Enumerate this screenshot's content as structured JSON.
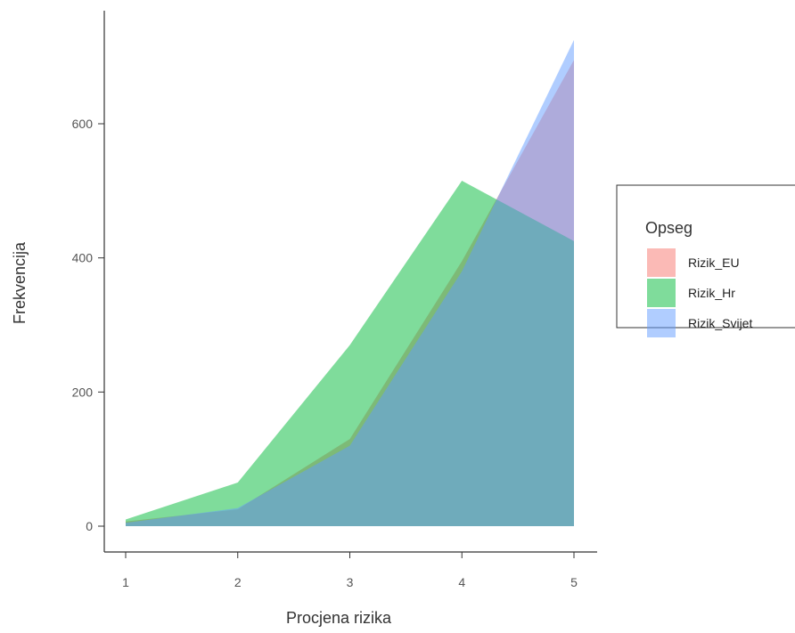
{
  "chart_data": {
    "type": "area",
    "xlabel": "Procjena rizika",
    "ylabel": "Frekvencija",
    "x": [
      1,
      2,
      3,
      4,
      5
    ],
    "xlim": [
      1,
      5
    ],
    "ylim": [
      0,
      720
    ],
    "x_ticks": [
      "1",
      "2",
      "3",
      "4",
      "5"
    ],
    "y_ticks": [
      "0",
      "200",
      "400",
      "600"
    ],
    "grid": false,
    "legend": {
      "title": "Opseg",
      "position": "right"
    },
    "series": [
      {
        "name": "Rizik_EU",
        "values": [
          7,
          25,
          130,
          395,
          695
        ],
        "color": "#F8766D"
      },
      {
        "name": "Rizik_Hr",
        "values": [
          10,
          65,
          270,
          515,
          425
        ],
        "color": "#00BA38"
      },
      {
        "name": "Rizik_Svijet",
        "values": [
          5,
          27,
          120,
          380,
          725
        ],
        "color": "#619CFF"
      }
    ]
  }
}
